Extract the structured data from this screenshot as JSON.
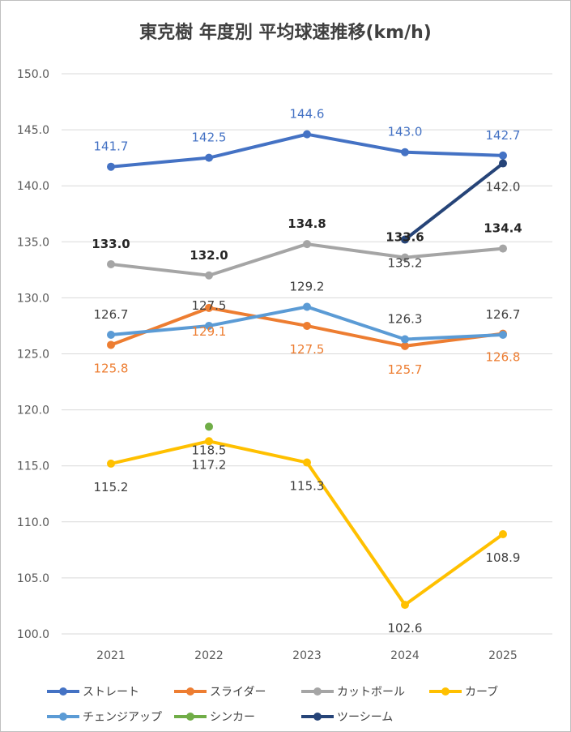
{
  "chart_data": {
    "type": "line",
    "title": "東克樹 年度別 平均球速推移(km/h)",
    "categories": [
      "2021",
      "2022",
      "2023",
      "2024",
      "2025"
    ],
    "ylim": [
      100.0,
      150.0
    ],
    "ytick_step": 5,
    "yticks": [
      "100.0",
      "105.0",
      "110.0",
      "115.0",
      "120.0",
      "125.0",
      "130.0",
      "135.0",
      "140.0",
      "145.0",
      "150.0"
    ],
    "grid": "horizontal",
    "legend_position": "bottom",
    "series": [
      {
        "name": "ストレート",
        "color": "#4472c4",
        "values": [
          141.7,
          142.5,
          144.6,
          143.0,
          142.7
        ],
        "labels": [
          "141.7",
          "142.5",
          "144.6",
          "143.0",
          "142.7"
        ],
        "label_color": "#4472c4",
        "label_pos": [
          "above",
          "above",
          "above",
          "above",
          "above"
        ]
      },
      {
        "name": "スライダー",
        "color": "#ed7d31",
        "values": [
          125.8,
          129.1,
          127.5,
          125.7,
          126.8
        ],
        "labels": [
          "125.8",
          "129.1",
          "127.5",
          "125.7",
          "126.8"
        ],
        "label_color": "#ed7d31",
        "label_pos": [
          "below",
          "below",
          "below",
          "below",
          "below"
        ]
      },
      {
        "name": "カットボール",
        "color": "#a5a5a5",
        "values": [
          133.0,
          132.0,
          134.8,
          133.6,
          134.4
        ],
        "labels": [
          "133.0",
          "132.0",
          "134.8",
          "133.6",
          "134.4"
        ],
        "label_color": "#262626",
        "label_bold": true,
        "label_pos": [
          "above",
          "above",
          "above",
          "above",
          "above"
        ]
      },
      {
        "name": "カーブ",
        "color": "#ffc000",
        "values": [
          115.2,
          117.2,
          115.3,
          102.6,
          108.9
        ],
        "labels": [
          "115.2",
          "117.2",
          "115.3",
          "102.6",
          "108.9"
        ],
        "label_color": "#404040",
        "label_pos": [
          "below",
          "below",
          "below",
          "below",
          "below"
        ]
      },
      {
        "name": "チェンジアップ",
        "color": "#5b9bd5",
        "values": [
          126.7,
          127.5,
          129.2,
          126.3,
          126.7
        ],
        "labels": [
          "126.7",
          "127.5",
          "129.2",
          "126.3",
          "126.7"
        ],
        "label_color": "#404040",
        "label_pos": [
          "above",
          "above",
          "above",
          "above",
          "above"
        ]
      },
      {
        "name": "シンカー",
        "color": "#70ad47",
        "values": [
          null,
          118.5,
          null,
          null,
          null
        ],
        "labels": [
          null,
          "118.5",
          null,
          null,
          null
        ],
        "label_color": "#404040",
        "label_pos": [
          null,
          "below",
          null,
          null,
          null
        ]
      },
      {
        "name": "ツーシーム",
        "color": "#264478",
        "values": [
          null,
          null,
          null,
          135.2,
          142.0
        ],
        "labels": [
          null,
          null,
          null,
          "135.2",
          "142.0"
        ],
        "label_color": "#404040",
        "label_pos": [
          null,
          null,
          null,
          "below",
          "below"
        ]
      }
    ]
  }
}
